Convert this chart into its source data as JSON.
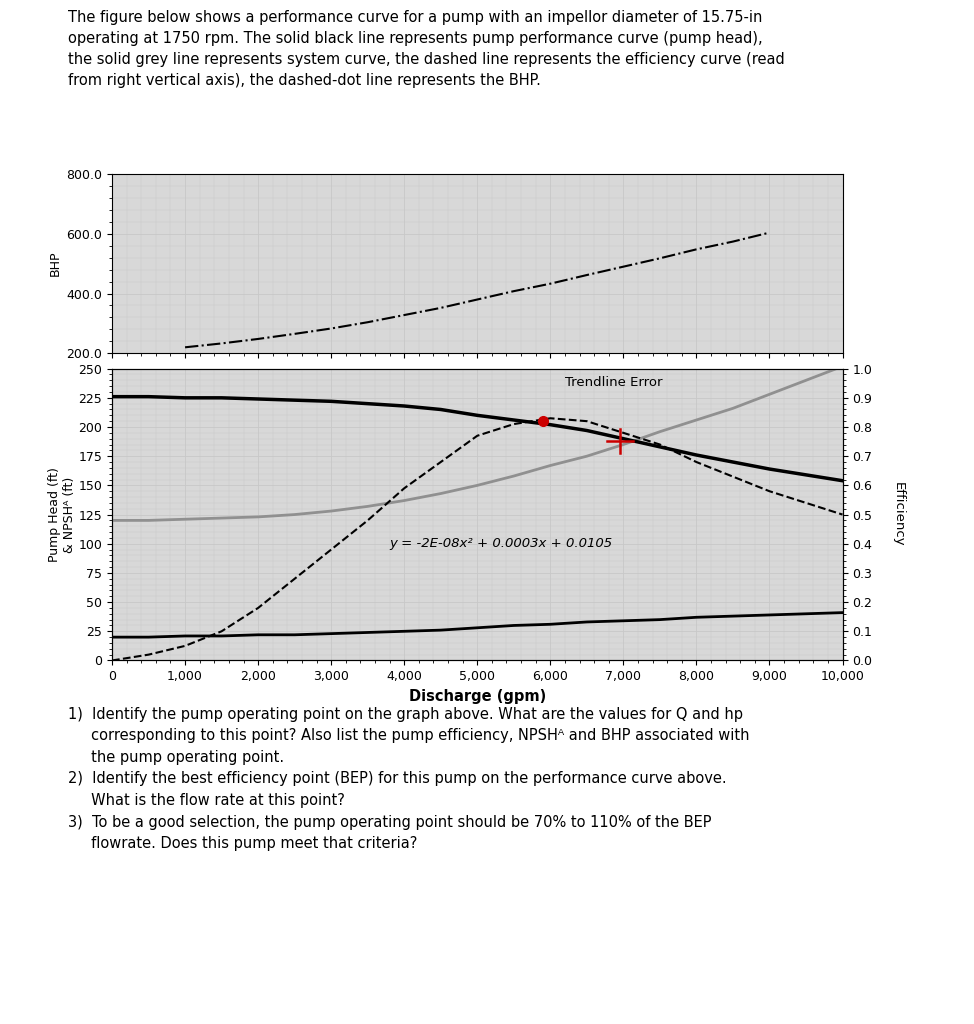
{
  "title_text": "The figure below shows a performance curve for a pump with an impellor diameter of 15.75-in\noperating at 1750 rpm. The solid black line represents pump performance curve (pump head),\nthe solid grey line represents system curve, the dashed line represents the efficiency curve (read\nfrom right vertical axis), the dashed-dot line represents the BHP.",
  "bhp_x": [
    1000,
    1500,
    2000,
    2500,
    3000,
    3500,
    4000,
    4500,
    5000,
    5500,
    6000,
    6500,
    7000,
    7500,
    8000,
    8500,
    9000
  ],
  "bhp_y": [
    220,
    233,
    248,
    265,
    283,
    304,
    328,
    352,
    380,
    408,
    433,
    462,
    490,
    518,
    548,
    574,
    604
  ],
  "pump_head_x": [
    0,
    500,
    1000,
    1500,
    2000,
    2500,
    3000,
    3500,
    4000,
    4500,
    5000,
    5500,
    6000,
    6500,
    7000,
    7500,
    8000,
    8500,
    9000,
    9500,
    10000
  ],
  "pump_head_y": [
    226,
    226,
    225,
    225,
    224,
    223,
    222,
    220,
    218,
    215,
    210,
    206,
    202,
    197,
    190,
    183,
    176,
    170,
    164,
    159,
    154
  ],
  "system_x": [
    0,
    500,
    1000,
    1500,
    2000,
    2500,
    3000,
    3500,
    4000,
    4500,
    5000,
    5500,
    6000,
    6500,
    7000,
    7500,
    8000,
    8500,
    9000,
    9500,
    10000
  ],
  "system_y": [
    120,
    120,
    121,
    122,
    123,
    125,
    128,
    132,
    137,
    143,
    150,
    158,
    167,
    175,
    185,
    196,
    206,
    216,
    228,
    240,
    252
  ],
  "efficiency_x": [
    0,
    500,
    1000,
    1500,
    2000,
    2500,
    3000,
    3500,
    4000,
    4500,
    5000,
    5500,
    6000,
    6500,
    7000,
    7500,
    8000,
    8500,
    9000,
    9500,
    10000
  ],
  "efficiency_y": [
    0.0,
    0.02,
    0.05,
    0.1,
    0.18,
    0.28,
    0.38,
    0.48,
    0.59,
    0.68,
    0.77,
    0.81,
    0.83,
    0.82,
    0.78,
    0.74,
    0.68,
    0.63,
    0.58,
    0.54,
    0.5
  ],
  "npsh_x": [
    0,
    500,
    1000,
    1500,
    2000,
    2500,
    3000,
    3500,
    4000,
    4500,
    5000,
    5500,
    6000,
    6500,
    7000,
    7500,
    8000,
    8500,
    9000,
    9500,
    10000
  ],
  "npsh_y": [
    20,
    20,
    21,
    21,
    22,
    22,
    23,
    24,
    25,
    26,
    28,
    30,
    31,
    33,
    34,
    35,
    37,
    38,
    39,
    40,
    41
  ],
  "op_point_x": 5900,
  "op_point_y": 205,
  "crosshair_x": 6950,
  "crosshair_y": 188,
  "equation_text": "y = -2E-08x² + 0.0003x + 0.0105",
  "equation_x": 3800,
  "equation_y": 100,
  "trendline_error_x": 6200,
  "trendline_error_y": 238,
  "xlabel": "Discharge (gpm)",
  "ylabel_main": "Pump Head (ft)\n& NPSHᴬ (ft)",
  "ylabel_bhp": "BHP",
  "ylabel_right": "Efficiency",
  "xlim": [
    0,
    10000
  ],
  "ylim_bhp": [
    200.0,
    800.0
  ],
  "ylim_main": [
    0,
    250
  ],
  "ylim_eff": [
    0.0,
    1.0
  ],
  "background_color": "#ffffff",
  "grid_color": "#c8c8c8",
  "pump_head_color": "#000000",
  "system_color": "#909090",
  "efficiency_color": "#000000",
  "npsh_color": "#000000",
  "bhp_color": "#000000",
  "op_point_color": "#cc0000",
  "crosshair_color": "#cc0000",
  "subplot_bg": "#d8d8d8"
}
